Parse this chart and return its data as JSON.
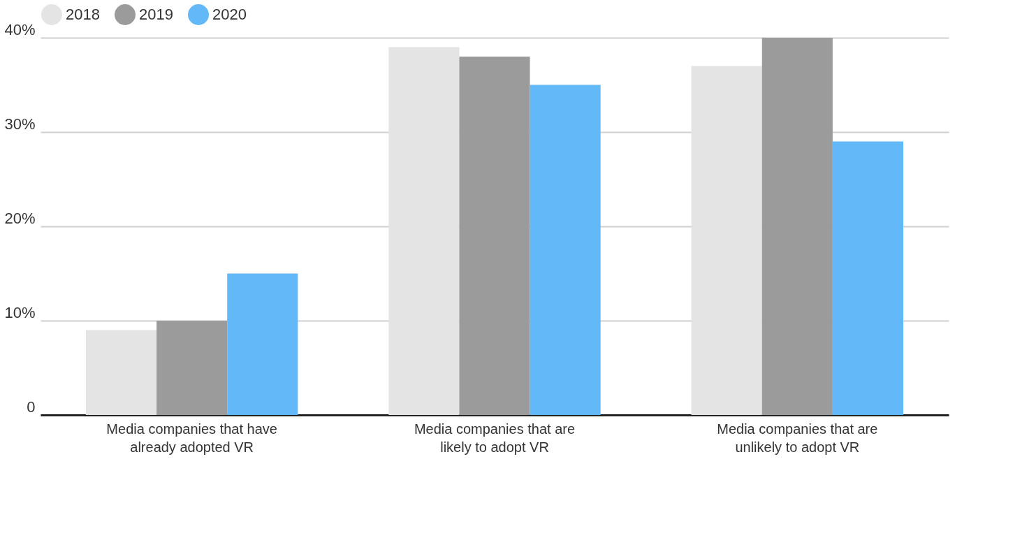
{
  "chart_data": {
    "type": "bar",
    "categories": [
      "Media companies that have already adopted VR",
      "Media companies that are likely to adopt VR",
      "Media companies that are unlikely to adopt VR"
    ],
    "series": [
      {
        "name": "2018",
        "color": "#e4e4e4",
        "values": [
          9,
          39,
          37
        ]
      },
      {
        "name": "2019",
        "color": "#9b9b9b",
        "values": [
          10,
          38,
          40
        ]
      },
      {
        "name": "2020",
        "color": "#63b9f8",
        "values": [
          15,
          35,
          29
        ]
      }
    ],
    "ylim": [
      0,
      40
    ],
    "yticks": [
      {
        "value": 0,
        "label": "0"
      },
      {
        "value": 10,
        "label": "10%"
      },
      {
        "value": 20,
        "label": "20%"
      },
      {
        "value": 30,
        "label": "30%"
      },
      {
        "value": 40,
        "label": "40%"
      }
    ],
    "grid": "y",
    "legend": "top"
  }
}
